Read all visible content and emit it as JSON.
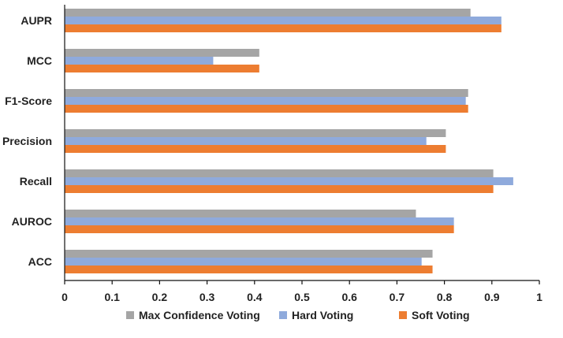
{
  "chart_data": {
    "type": "bar",
    "orientation": "horizontal",
    "title": "",
    "xlabel": "",
    "ylabel": "",
    "xlim": [
      0,
      1
    ],
    "xticks": [
      "0",
      "0.1",
      "0.2",
      "0.3",
      "0.4",
      "0.5",
      "0.6",
      "0.7",
      "0.8",
      "0.9",
      "1"
    ],
    "categories": [
      "AUPR",
      "MCC",
      "F1-Score",
      "Precision",
      "Recall",
      "AUROC",
      "ACC"
    ],
    "series": [
      {
        "name": "Max Confidence Voting",
        "color": "#a5a5a5",
        "values": [
          0.855,
          0.41,
          0.85,
          0.803,
          0.903,
          0.74,
          0.775
        ]
      },
      {
        "name": "Hard Voting",
        "color": "#8faadc",
        "values": [
          0.92,
          0.313,
          0.845,
          0.762,
          0.945,
          0.82,
          0.752
        ]
      },
      {
        "name": "Soft Voting",
        "color": "#ed7d31",
        "values": [
          0.92,
          0.41,
          0.85,
          0.803,
          0.903,
          0.82,
          0.775
        ]
      }
    ],
    "grid": false,
    "legend_position": "bottom"
  }
}
